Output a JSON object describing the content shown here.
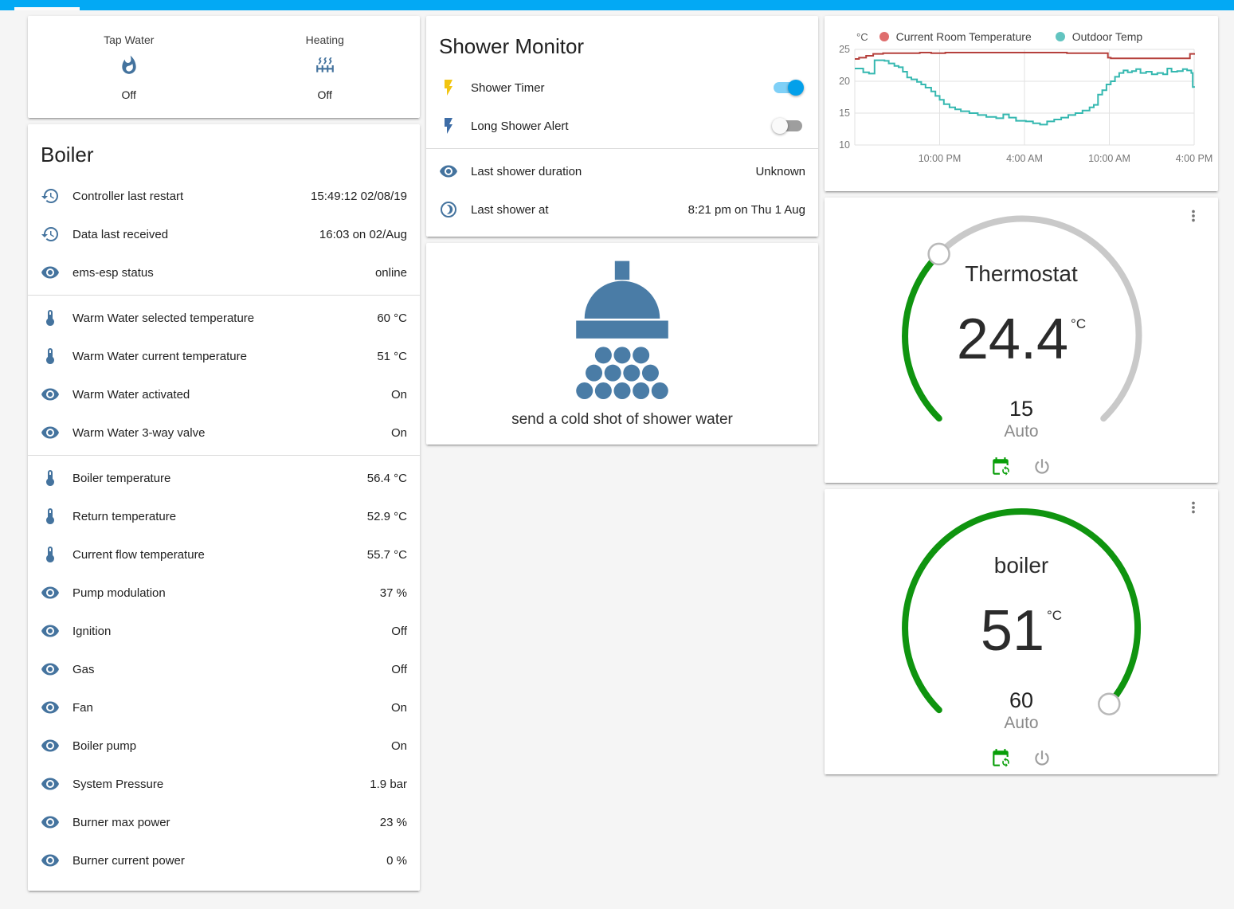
{
  "colors": {
    "appbar": "#03a9f4",
    "icon_blue": "#44739e",
    "active_yellow": "#f2c511",
    "bolt_blue": "#3e6da6",
    "dial_green": "#0f940f",
    "dial_rest": "#c9c9c9",
    "room_line": "#b5403c",
    "room_dot": "#df6e6e",
    "outdoor_line": "#35b8b0",
    "outdoor_dot": "#62c4c0",
    "calendar_green": "#089e08",
    "power_gray": "#9e9e9e"
  },
  "glance": {
    "items": [
      {
        "label": "Tap Water",
        "icon": "fire-icon",
        "state": "Off"
      },
      {
        "label": "Heating",
        "icon": "radiator-icon",
        "state": "Off"
      }
    ]
  },
  "boiler": {
    "title": "Boiler",
    "rows": [
      {
        "icon": "history-icon",
        "label": "Controller last restart",
        "value": "15:49:12 02/08/19"
      },
      {
        "icon": "history-icon",
        "label": "Data last received",
        "value": "16:03 on 02/Aug"
      },
      {
        "icon": "eye-icon",
        "label": "ems-esp status",
        "value": "online",
        "divider_after": true
      },
      {
        "icon": "thermometer-icon",
        "label": "Warm Water selected temperature",
        "value": "60 °C"
      },
      {
        "icon": "thermometer-icon",
        "label": "Warm Water current temperature",
        "value": "51 °C"
      },
      {
        "icon": "eye-icon",
        "label": "Warm Water activated",
        "value": "On"
      },
      {
        "icon": "eye-icon",
        "label": "Warm Water 3-way valve",
        "value": "On",
        "divider_after": true
      },
      {
        "icon": "thermometer-icon",
        "label": "Boiler temperature",
        "value": "56.4 °C"
      },
      {
        "icon": "thermometer-icon",
        "label": "Return temperature",
        "value": "52.9 °C"
      },
      {
        "icon": "thermometer-icon",
        "label": "Current flow temperature",
        "value": "55.7 °C"
      },
      {
        "icon": "eye-icon",
        "label": "Pump modulation",
        "value": "37 %"
      },
      {
        "icon": "eye-icon",
        "label": "Ignition",
        "value": "Off"
      },
      {
        "icon": "eye-icon",
        "label": "Gas",
        "value": "Off"
      },
      {
        "icon": "eye-icon",
        "label": "Fan",
        "value": "On"
      },
      {
        "icon": "eye-icon",
        "label": "Boiler pump",
        "value": "On"
      },
      {
        "icon": "eye-icon",
        "label": "System Pressure",
        "value": "1.9 bar"
      },
      {
        "icon": "eye-icon",
        "label": "Burner max power",
        "value": "23 %"
      },
      {
        "icon": "eye-icon",
        "label": "Burner current power",
        "value": "0 %"
      }
    ]
  },
  "shower_monitor": {
    "title": "Shower Monitor",
    "toggles": [
      {
        "icon": "flash-icon",
        "icon_color": "#f2c511",
        "label": "Shower Timer",
        "state": "on"
      },
      {
        "icon": "flash-icon",
        "icon_color": "#3e6da6",
        "label": "Long Shower Alert",
        "state": "off"
      }
    ],
    "info_rows": [
      {
        "icon": "eye-icon",
        "label": "Last shower duration",
        "value": "Unknown"
      },
      {
        "icon": "moon-icon",
        "label": "Last shower at",
        "value": "8:21 pm on Thu 1 Aug"
      }
    ]
  },
  "shower_action": {
    "icon": "shower-head-icon",
    "label": "send a cold shot of shower water"
  },
  "chart_data": {
    "type": "line",
    "title": "",
    "xlabel": "",
    "ylabel": "°C",
    "ylim": [
      10,
      25
    ],
    "yticks": [
      25,
      20,
      15,
      10
    ],
    "x_span_hours": 24,
    "x_start": "4:00 PM",
    "xticks": [
      {
        "pos": 6,
        "label": "10:00 PM"
      },
      {
        "pos": 12,
        "label": "4:00 AM"
      },
      {
        "pos": 18,
        "label": "10:00 AM"
      },
      {
        "pos": 24,
        "label": "4:00 PM"
      }
    ],
    "grid": true,
    "legend_position": "top",
    "series": [
      {
        "name": "Current Room Temperature",
        "color": "#b5403c",
        "dot_color": "#df6e6e",
        "step": true,
        "points": [
          [
            0,
            23.5
          ],
          [
            0.3,
            23.7
          ],
          [
            0.8,
            24.0
          ],
          [
            1.3,
            24.3
          ],
          [
            2,
            24.4
          ],
          [
            4.4,
            24.4
          ],
          [
            4.6,
            24.5
          ],
          [
            5.4,
            24.4
          ],
          [
            6.4,
            24.5
          ],
          [
            9,
            24.5
          ],
          [
            12,
            24.5
          ],
          [
            14.5,
            24.5
          ],
          [
            15,
            24.4
          ],
          [
            17.6,
            24.4
          ],
          [
            17.9,
            23.7
          ],
          [
            18.1,
            23.6
          ],
          [
            23.6,
            23.6
          ],
          [
            23.7,
            24.3
          ],
          [
            24,
            24.4
          ]
        ]
      },
      {
        "name": "Outdoor Temp",
        "color": "#35b8b0",
        "dot_color": "#62c4c0",
        "step": true,
        "points": [
          [
            0,
            22.0
          ],
          [
            0.6,
            21.4
          ],
          [
            1.0,
            21.2
          ],
          [
            1.4,
            23.3
          ],
          [
            2.1,
            23.2
          ],
          [
            2.4,
            22.8
          ],
          [
            2.8,
            22.4
          ],
          [
            3.1,
            22.2
          ],
          [
            3.4,
            21.5
          ],
          [
            3.7,
            20.6
          ],
          [
            4.0,
            20.3
          ],
          [
            4.4,
            19.9
          ],
          [
            4.7,
            19.5
          ],
          [
            5.0,
            19.0
          ],
          [
            5.4,
            18.4
          ],
          [
            5.7,
            17.7
          ],
          [
            6.0,
            17.1
          ],
          [
            6.3,
            16.4
          ],
          [
            6.7,
            15.9
          ],
          [
            7.1,
            15.6
          ],
          [
            7.5,
            15.3
          ],
          [
            8.1,
            15.0
          ],
          [
            8.7,
            14.7
          ],
          [
            9.3,
            14.4
          ],
          [
            10.0,
            14.2
          ],
          [
            10.5,
            14.8
          ],
          [
            10.9,
            14.3
          ],
          [
            11.4,
            13.8
          ],
          [
            12.1,
            13.7
          ],
          [
            12.6,
            13.4
          ],
          [
            13.1,
            13.2
          ],
          [
            13.6,
            13.7
          ],
          [
            14.1,
            14.0
          ],
          [
            14.6,
            14.3
          ],
          [
            15.1,
            14.7
          ],
          [
            15.6,
            15.0
          ],
          [
            16.1,
            15.4
          ],
          [
            16.6,
            15.9
          ],
          [
            16.9,
            16.3
          ],
          [
            17.2,
            17.9
          ],
          [
            17.5,
            18.6
          ],
          [
            17.8,
            19.5
          ],
          [
            18.1,
            20.0
          ],
          [
            18.4,
            20.7
          ],
          [
            18.7,
            21.3
          ],
          [
            19.0,
            21.7
          ],
          [
            19.3,
            21.4
          ],
          [
            19.6,
            21.6
          ],
          [
            19.9,
            21.9
          ],
          [
            20.2,
            21.3
          ],
          [
            20.6,
            21.5
          ],
          [
            21.0,
            21.1
          ],
          [
            21.4,
            21.3
          ],
          [
            21.8,
            21.1
          ],
          [
            22.1,
            22.0
          ],
          [
            22.4,
            21.5
          ],
          [
            22.8,
            21.6
          ],
          [
            23.2,
            21.9
          ],
          [
            23.5,
            21.7
          ],
          [
            23.8,
            21.3
          ],
          [
            23.9,
            19.1
          ],
          [
            24,
            19.0
          ]
        ]
      }
    ]
  },
  "dials": [
    {
      "title": "Thermostat",
      "value": "24.4",
      "unit": "°C",
      "target": "15",
      "mode": "Auto",
      "fraction": 0.333
    },
    {
      "title": "boiler",
      "value": "51",
      "unit": "°C",
      "target": "60",
      "mode": "Auto",
      "fraction": 0.985
    }
  ]
}
